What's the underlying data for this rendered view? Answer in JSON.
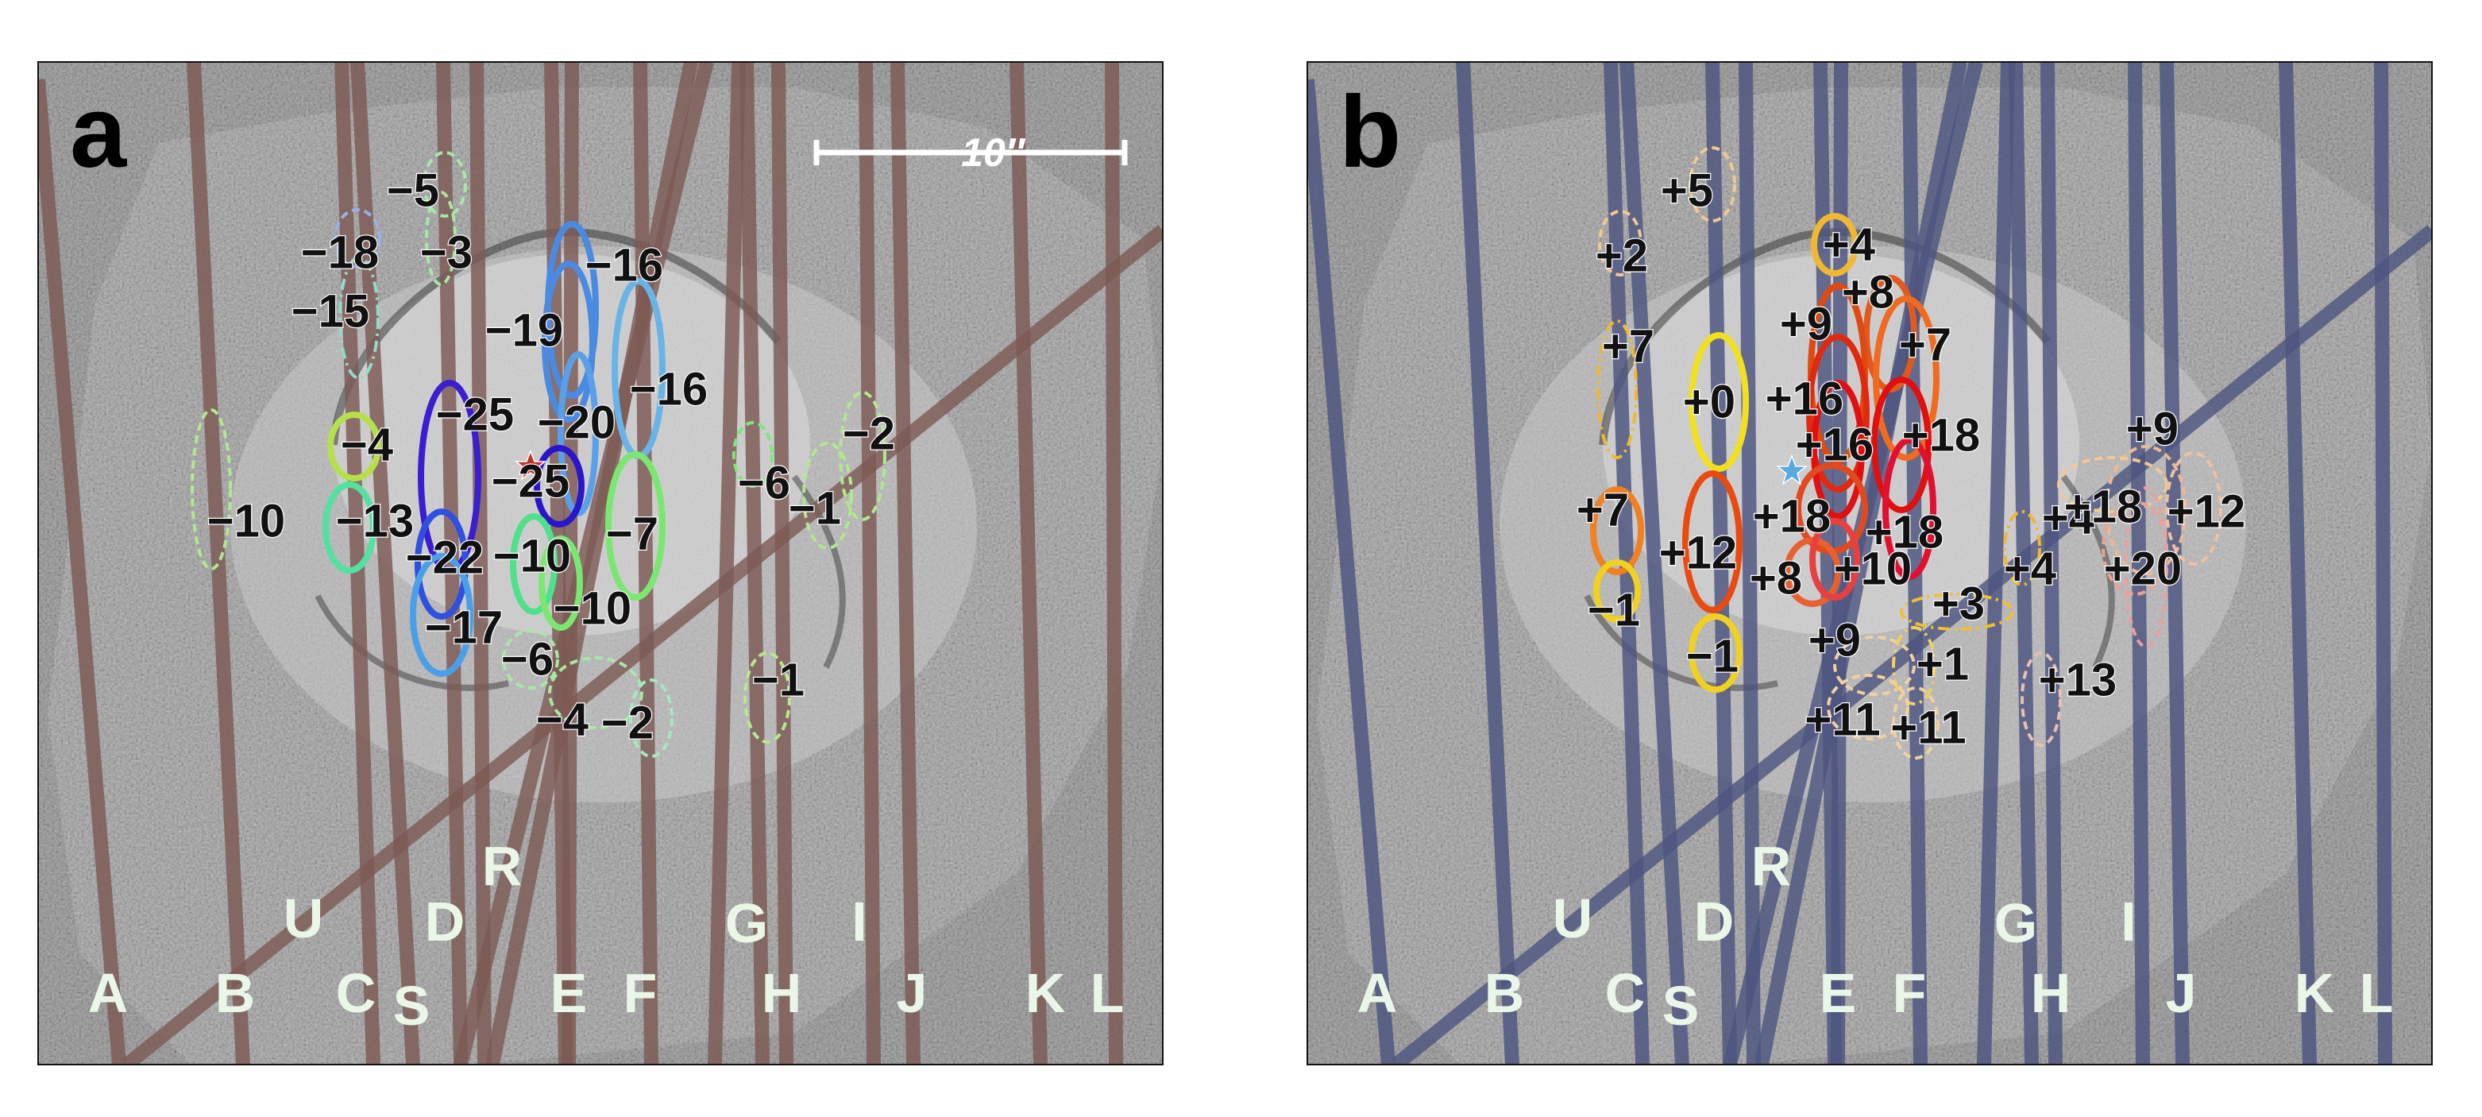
{
  "colors": {
    "slit_a": "#7d5a54",
    "slit_b": "#4d5580",
    "background": "#8c8c8c",
    "slit_label": "#eaf7e8",
    "number": "#111111",
    "star_a": "#c0302c",
    "star_b": "#5aa8e0"
  },
  "panels": [
    {
      "label": "a",
      "scale_bar": "10″",
      "slits": [
        "A",
        "B",
        "C",
        "S",
        "U",
        "D",
        "R",
        "E",
        "F",
        "G",
        "H",
        "I",
        "J",
        "K",
        "L"
      ],
      "velocities": [
        {
          "text": "−5",
          "color": "#a6e8a6",
          "style": "dashed"
        },
        {
          "text": "−18",
          "color": "#9ab0e8",
          "style": "dashed"
        },
        {
          "text": "−3",
          "color": "#a6e8a6",
          "style": "dashed"
        },
        {
          "text": "−15",
          "color": "#8fdcc8",
          "style": "dashdot"
        },
        {
          "text": "−16",
          "color": "#4a8ae0",
          "style": "solid"
        },
        {
          "text": "−19",
          "color": "#4a8ae0",
          "style": "solid"
        },
        {
          "text": "−16",
          "color": "#68b4e8",
          "style": "solid"
        },
        {
          "text": "−25",
          "color": "#3a1ed0",
          "style": "solid"
        },
        {
          "text": "−20",
          "color": "#5aa0e8",
          "style": "solid"
        },
        {
          "text": "−4",
          "color": "#b6e04a",
          "style": "solid"
        },
        {
          "text": "−25",
          "color": "#2a16c8",
          "style": "solid"
        },
        {
          "text": "−6",
          "color": "#7ae87a",
          "style": "dashed"
        },
        {
          "text": "−2",
          "color": "#b0e890",
          "style": "dashed"
        },
        {
          "text": "−1",
          "color": "#b0e890",
          "style": "dashed"
        },
        {
          "text": "−10",
          "color": "#b0e890",
          "style": "dashed"
        },
        {
          "text": "−13",
          "color": "#54e0a0",
          "style": "solid"
        },
        {
          "text": "−7",
          "color": "#7ae870",
          "style": "solid"
        },
        {
          "text": "−22",
          "color": "#3050e0",
          "style": "solid"
        },
        {
          "text": "−10",
          "color": "#4ee08a",
          "style": "solid"
        },
        {
          "text": "−10",
          "color": "#7ae870",
          "style": "solid"
        },
        {
          "text": "−17",
          "color": "#4aa0e8",
          "style": "solid"
        },
        {
          "text": "−6",
          "color": "#a6e8a6",
          "style": "dashed"
        },
        {
          "text": "−1",
          "color": "#b6e890",
          "style": "dashed"
        },
        {
          "text": "−4",
          "color": "#a6e8a6",
          "style": "dashed"
        },
        {
          "text": "−2",
          "color": "#a6e8c0",
          "style": "dashed"
        }
      ]
    },
    {
      "label": "b",
      "slits": [
        "A",
        "B",
        "C",
        "S",
        "U",
        "D",
        "R",
        "E",
        "F",
        "G",
        "H",
        "I",
        "J",
        "K",
        "L"
      ],
      "velocities": [
        {
          "text": "+5",
          "color": "#f0c890",
          "style": "dashed"
        },
        {
          "text": "+4",
          "color": "#f0b830",
          "style": "solid"
        },
        {
          "text": "+2",
          "color": "#f0c890",
          "style": "dashed"
        },
        {
          "text": "+8",
          "color": "#e05a20",
          "style": "solid"
        },
        {
          "text": "+9",
          "color": "#e04a10",
          "style": "solid"
        },
        {
          "text": "+7",
          "color": "#f06a20",
          "style": "solid"
        },
        {
          "text": "+7",
          "color": "#f0b830",
          "style": "dashdot"
        },
        {
          "text": "+0",
          "color": "#f0e020",
          "style": "solid"
        },
        {
          "text": "+16",
          "color": "#e02a10",
          "style": "solid"
        },
        {
          "text": "+16",
          "color": "#e01010",
          "style": "solid"
        },
        {
          "text": "+18",
          "color": "#e01010",
          "style": "solid"
        },
        {
          "text": "+9",
          "color": "#f0b890",
          "style": "dashed"
        },
        {
          "text": "+4",
          "color": "#f0c890",
          "style": "dashed"
        },
        {
          "text": "+7",
          "color": "#f08020",
          "style": "solid"
        },
        {
          "text": "+18",
          "color": "#e04a20",
          "style": "solid"
        },
        {
          "text": "+18",
          "color": "#e01030",
          "style": "solid"
        },
        {
          "text": "+18",
          "color": "#f0a090",
          "style": "dashed"
        },
        {
          "text": "+12",
          "color": "#e84a10",
          "style": "solid"
        },
        {
          "text": "+12",
          "color": "#f0c0a0",
          "style": "dashed"
        },
        {
          "text": "+8",
          "color": "#e86030",
          "style": "solid"
        },
        {
          "text": "+10",
          "color": "#e84040",
          "style": "solid"
        },
        {
          "text": "+4",
          "color": "#f0b830",
          "style": "dashdot"
        },
        {
          "text": "+20",
          "color": "#e8a0a0",
          "style": "dashed"
        },
        {
          "text": "−1",
          "color": "#f0d020",
          "style": "solid"
        },
        {
          "text": "+3",
          "color": "#f0c030",
          "style": "dashdot"
        },
        {
          "text": "−1",
          "color": "#f0d020",
          "style": "solid"
        },
        {
          "text": "+9",
          "color": "#f0d0a0",
          "style": "dashed"
        },
        {
          "text": "+1",
          "color": "#f0d060",
          "style": "dashdot"
        },
        {
          "text": "+13",
          "color": "#e8c0b0",
          "style": "dashed"
        },
        {
          "text": "+11",
          "color": "#f0d0a0",
          "style": "dashed"
        },
        {
          "text": "+11",
          "color": "#f0d0a0",
          "style": "dashed"
        }
      ]
    }
  ]
}
